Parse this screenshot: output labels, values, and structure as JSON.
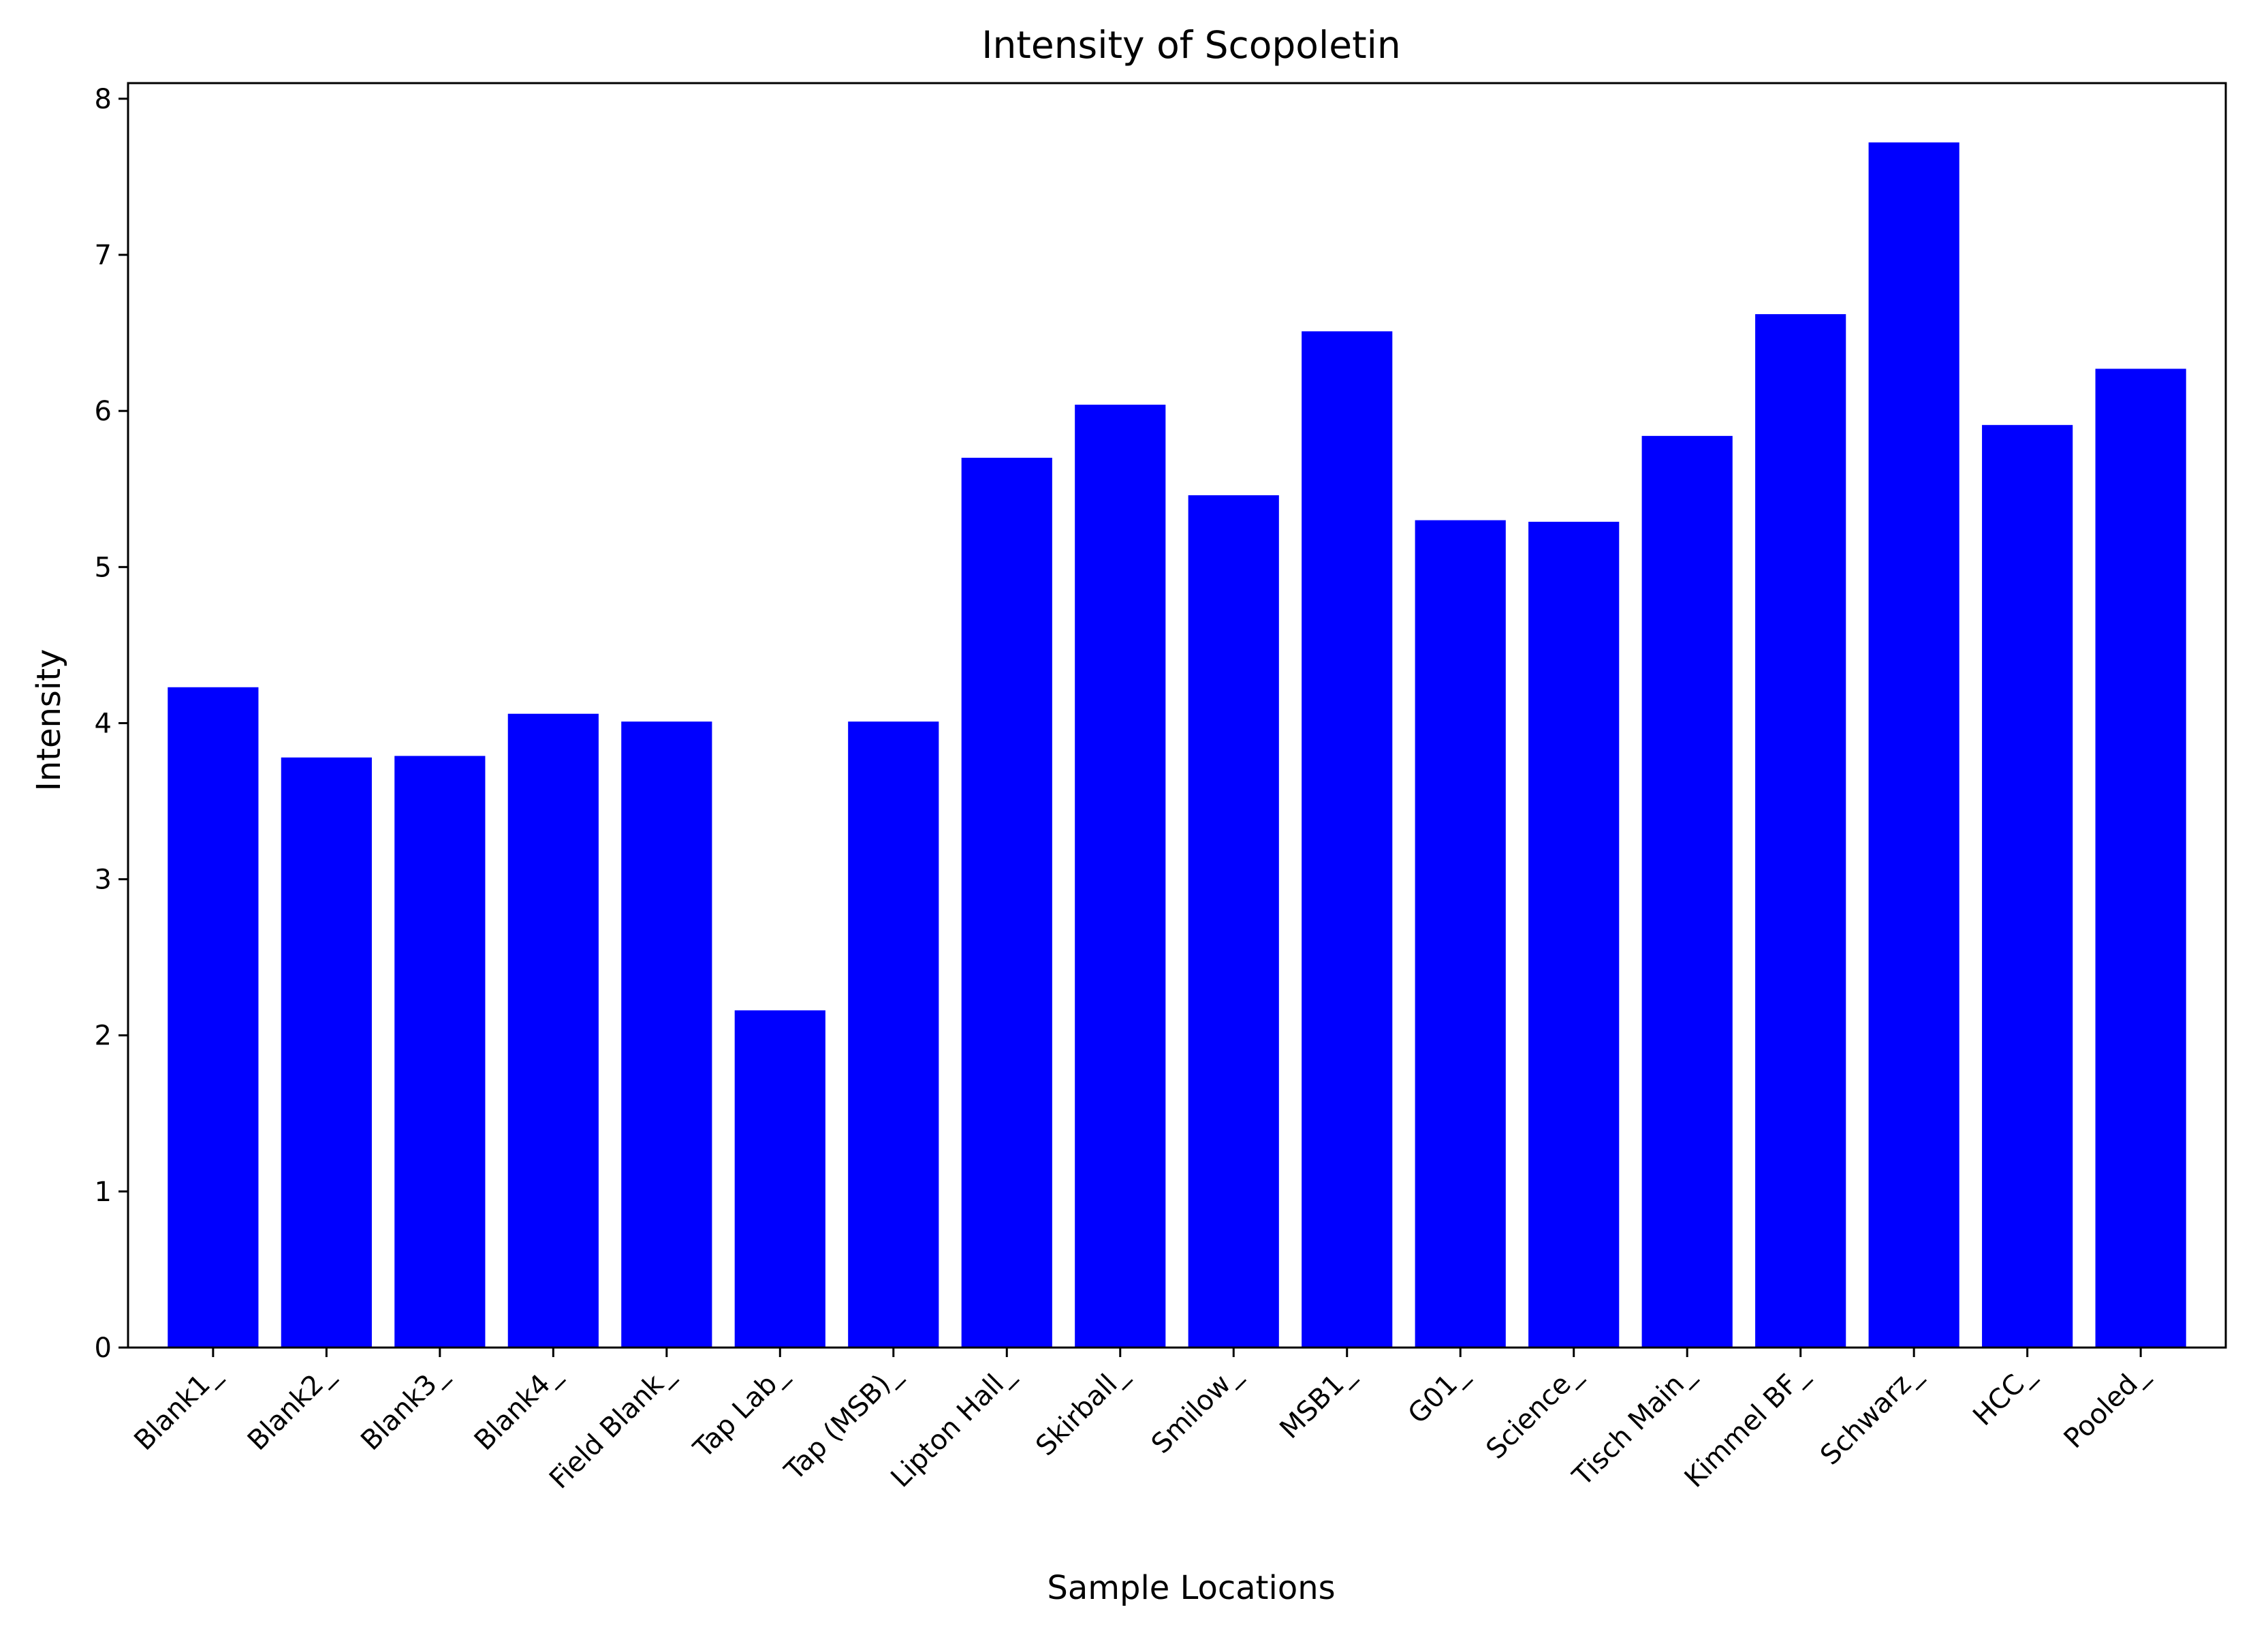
{
  "chart_data": {
    "type": "bar",
    "title": "Intensity of Scopoletin",
    "xlabel": "Sample Locations",
    "ylabel": "Intensity",
    "categories": [
      "Blank1_",
      "Blank2_",
      "Blank3_",
      "Blank4_",
      "Field Blank_",
      "Tap Lab_",
      "Tap (MSB)_",
      "Lipton Hall_",
      "Skirball_",
      "Smilow_",
      "MSB1_",
      "G01_",
      "Science_",
      "Tisch Main_",
      "Kimmel BF_",
      "Schwarz_",
      "HCC_",
      "Pooled_"
    ],
    "values": [
      4.23,
      3.78,
      3.79,
      4.06,
      4.01,
      2.16,
      4.01,
      5.7,
      6.04,
      5.46,
      6.51,
      5.3,
      5.29,
      5.84,
      6.62,
      7.72,
      5.91,
      6.27
    ],
    "yticks": [
      0,
      1,
      2,
      3,
      4,
      5,
      6,
      7,
      8
    ],
    "ylim": [
      0,
      8.1
    ],
    "grid": false,
    "bar_color": "#0000ff"
  }
}
